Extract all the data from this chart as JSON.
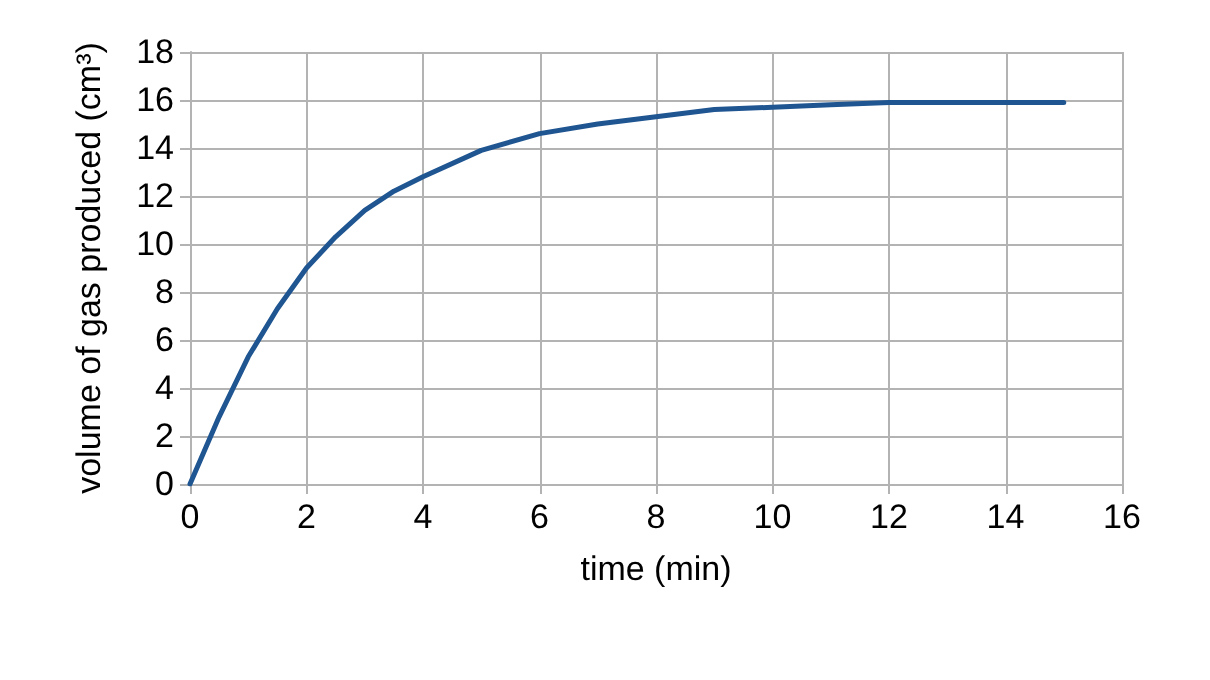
{
  "chart_data": {
    "type": "line",
    "xlabel": "time (min)",
    "ylabel": "volume of gas produced (cm³)",
    "x": [
      0,
      0.5,
      1,
      1.5,
      2,
      2.5,
      3,
      3.5,
      4,
      5,
      6,
      7,
      8,
      9,
      10,
      11,
      12,
      13,
      14,
      15
    ],
    "series": [
      {
        "color": "#1f5591",
        "values": [
          0,
          2.8,
          5.3,
          7.3,
          9.0,
          10.3,
          11.4,
          12.2,
          12.8,
          13.9,
          14.6,
          15.0,
          15.3,
          15.6,
          15.7,
          15.8,
          15.9,
          15.9,
          15.9,
          15.9
        ]
      }
    ],
    "xlim": [
      0,
      16
    ],
    "xticks": [
      0,
      2,
      4,
      6,
      8,
      10,
      12,
      14,
      16
    ],
    "ylim": [
      0,
      18
    ],
    "yticks": [
      0,
      2,
      4,
      6,
      8,
      10,
      12,
      14,
      16,
      18
    ],
    "grid": true,
    "marker": "none",
    "line_style": "solid"
  }
}
